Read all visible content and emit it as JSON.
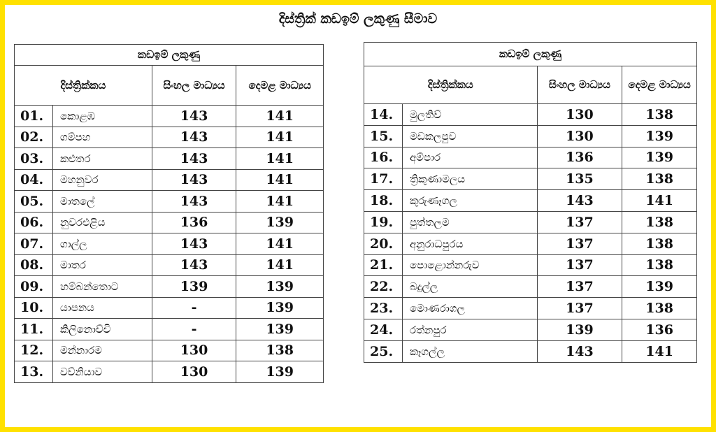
{
  "title": "දිස්ත්‍රික් කඩඉම් ලකුණු සීමාව",
  "headers": {
    "group": "කඩඉම් ලකුණු",
    "district": "දිස්ත්‍රික්කය",
    "sinhala": "සිංහල මාධ්‍යය",
    "tamil": "දෙමළ මාධ්‍යය"
  },
  "accent_color": "#ffe100",
  "left_rows": [
    {
      "no": "01.",
      "district": "කොළඹ",
      "sinhala": "143",
      "tamil": "141"
    },
    {
      "no": "02.",
      "district": "ගම්පහ",
      "sinhala": "143",
      "tamil": "141"
    },
    {
      "no": "03.",
      "district": "කළුතර",
      "sinhala": "143",
      "tamil": "141"
    },
    {
      "no": "04.",
      "district": "මහනුවර",
      "sinhala": "143",
      "tamil": "141"
    },
    {
      "no": "05.",
      "district": "මාතලේ",
      "sinhala": "143",
      "tamil": "141"
    },
    {
      "no": "06.",
      "district": "නුවරඑළිය",
      "sinhala": "136",
      "tamil": "139"
    },
    {
      "no": "07.",
      "district": "ගාල්ල",
      "sinhala": "143",
      "tamil": "141"
    },
    {
      "no": "08.",
      "district": "මාතර",
      "sinhala": "143",
      "tamil": "141"
    },
    {
      "no": "09.",
      "district": "හම්බන්තොට",
      "sinhala": "139",
      "tamil": "139"
    },
    {
      "no": "10.",
      "district": "යාපනය",
      "sinhala": "-",
      "tamil": "139"
    },
    {
      "no": "11.",
      "district": "කිලිනොච්චි",
      "sinhala": "-",
      "tamil": "139"
    },
    {
      "no": "12.",
      "district": "මන්නාරම",
      "sinhala": "130",
      "tamil": "138"
    },
    {
      "no": "13.",
      "district": "වව්නියාව",
      "sinhala": "130",
      "tamil": "139"
    }
  ],
  "right_rows": [
    {
      "no": "14.",
      "district": "මුලතිව්",
      "sinhala": "130",
      "tamil": "138"
    },
    {
      "no": "15.",
      "district": "මඩකලපුව",
      "sinhala": "130",
      "tamil": "139"
    },
    {
      "no": "16.",
      "district": "අම්පාර",
      "sinhala": "136",
      "tamil": "139"
    },
    {
      "no": "17.",
      "district": "ත්‍රිකුණාමලය",
      "sinhala": "135",
      "tamil": "138"
    },
    {
      "no": "18.",
      "district": "කුරුණෑගල",
      "sinhala": "143",
      "tamil": "141"
    },
    {
      "no": "19.",
      "district": "පුත්තලම",
      "sinhala": "137",
      "tamil": "138"
    },
    {
      "no": "20.",
      "district": "අනුරාධපුරය",
      "sinhala": "137",
      "tamil": "138"
    },
    {
      "no": "21.",
      "district": "පොළොන්නරුව",
      "sinhala": "137",
      "tamil": "138"
    },
    {
      "no": "22.",
      "district": "බදුල්ල",
      "sinhala": "137",
      "tamil": "139"
    },
    {
      "no": "23.",
      "district": "මොණරාගල",
      "sinhala": "137",
      "tamil": "138"
    },
    {
      "no": "24.",
      "district": "රත්නපුර",
      "sinhala": "139",
      "tamil": "136"
    },
    {
      "no": "25.",
      "district": "කෑගල්ල",
      "sinhala": "143",
      "tamil": "141"
    }
  ]
}
